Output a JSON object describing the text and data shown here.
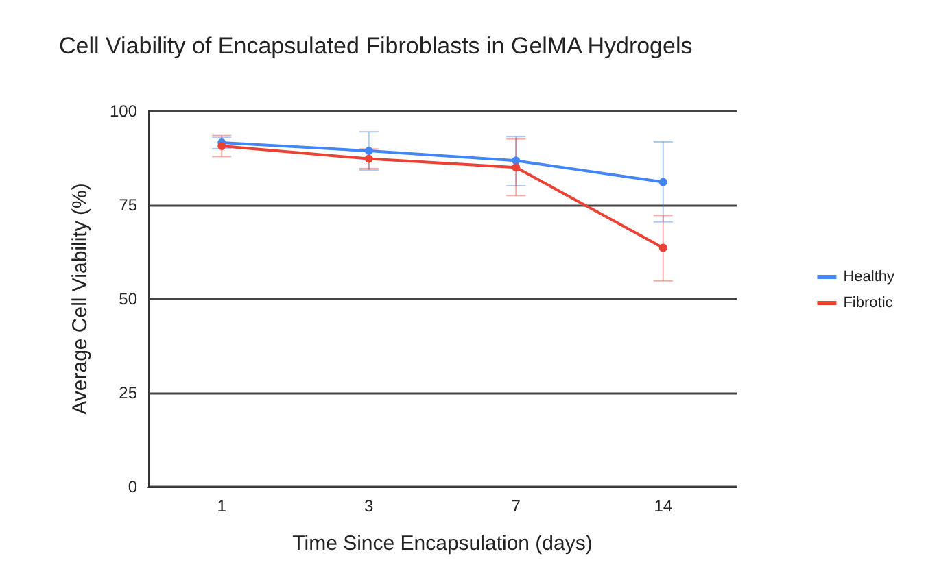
{
  "chart_data": {
    "type": "line",
    "title": "Cell Viability of Encapsulated Fibroblasts in GelMA Hydrogels",
    "xlabel": "Time Since Encapsulation (days)",
    "ylabel": "Average Cell Viability (%)",
    "categories": [
      "1",
      "3",
      "7",
      "14"
    ],
    "ylim": [
      0,
      100
    ],
    "yticks": [
      0,
      25,
      50,
      75,
      100
    ],
    "grid": "y",
    "legend": "right",
    "marker": "circle",
    "line_style": "solid",
    "series": [
      {
        "name": "Healthy",
        "color": "#4285f4",
        "values": [
          91.6,
          89.4,
          86.8,
          81.1
        ],
        "errors": [
          [
            90,
            93
          ],
          [
            84.3,
            94.5
          ],
          [
            80.1,
            93.2
          ],
          [
            70.5,
            91.8
          ]
        ]
      },
      {
        "name": "Fibrotic",
        "color": "#ea4335",
        "values": [
          90.7,
          87.3,
          85,
          63.6
        ],
        "errors": [
          [
            87.9,
            93.5
          ],
          [
            84.7,
            89.9
          ],
          [
            77.5,
            92.6
          ],
          [
            54.8,
            72.2
          ]
        ]
      }
    ]
  }
}
